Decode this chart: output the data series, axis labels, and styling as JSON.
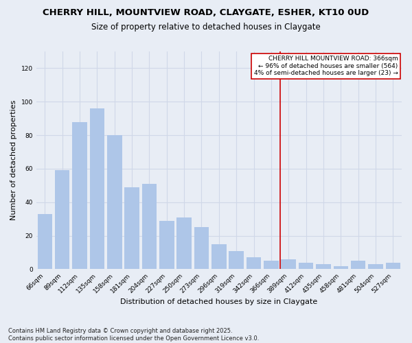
{
  "title": "CHERRY HILL, MOUNTVIEW ROAD, CLAYGATE, ESHER, KT10 0UD",
  "subtitle": "Size of property relative to detached houses in Claygate",
  "xlabel": "Distribution of detached houses by size in Claygate",
  "ylabel": "Number of detached properties",
  "categories": [
    "66sqm",
    "89sqm",
    "112sqm",
    "135sqm",
    "158sqm",
    "181sqm",
    "204sqm",
    "227sqm",
    "250sqm",
    "273sqm",
    "296sqm",
    "319sqm",
    "342sqm",
    "366sqm",
    "389sqm",
    "412sqm",
    "435sqm",
    "458sqm",
    "481sqm",
    "504sqm",
    "527sqm"
  ],
  "values": [
    33,
    59,
    88,
    96,
    80,
    49,
    51,
    29,
    31,
    25,
    15,
    11,
    7,
    5,
    6,
    4,
    3,
    2,
    5,
    3,
    4
  ],
  "bar_color_normal": "#aec6e8",
  "highlight_index": 13,
  "ylim": [
    0,
    130
  ],
  "yticks": [
    0,
    20,
    40,
    60,
    80,
    100,
    120
  ],
  "annotation_box_text": "CHERRY HILL MOUNTVIEW ROAD: 366sqm\n← 96% of detached houses are smaller (564)\n4% of semi-detached houses are larger (23) →",
  "annotation_box_color": "#ffffff",
  "annotation_box_edge_color": "#cc0000",
  "vline_color": "#cc0000",
  "footnote": "Contains HM Land Registry data © Crown copyright and database right 2025.\nContains public sector information licensed under the Open Government Licence v3.0.",
  "grid_color": "#d0d8e8",
  "background_color": "#e8edf5",
  "title_fontsize": 9.5,
  "subtitle_fontsize": 8.5,
  "label_fontsize": 8,
  "tick_fontsize": 6.5,
  "footnote_fontsize": 6,
  "annotation_fontsize": 6.5
}
